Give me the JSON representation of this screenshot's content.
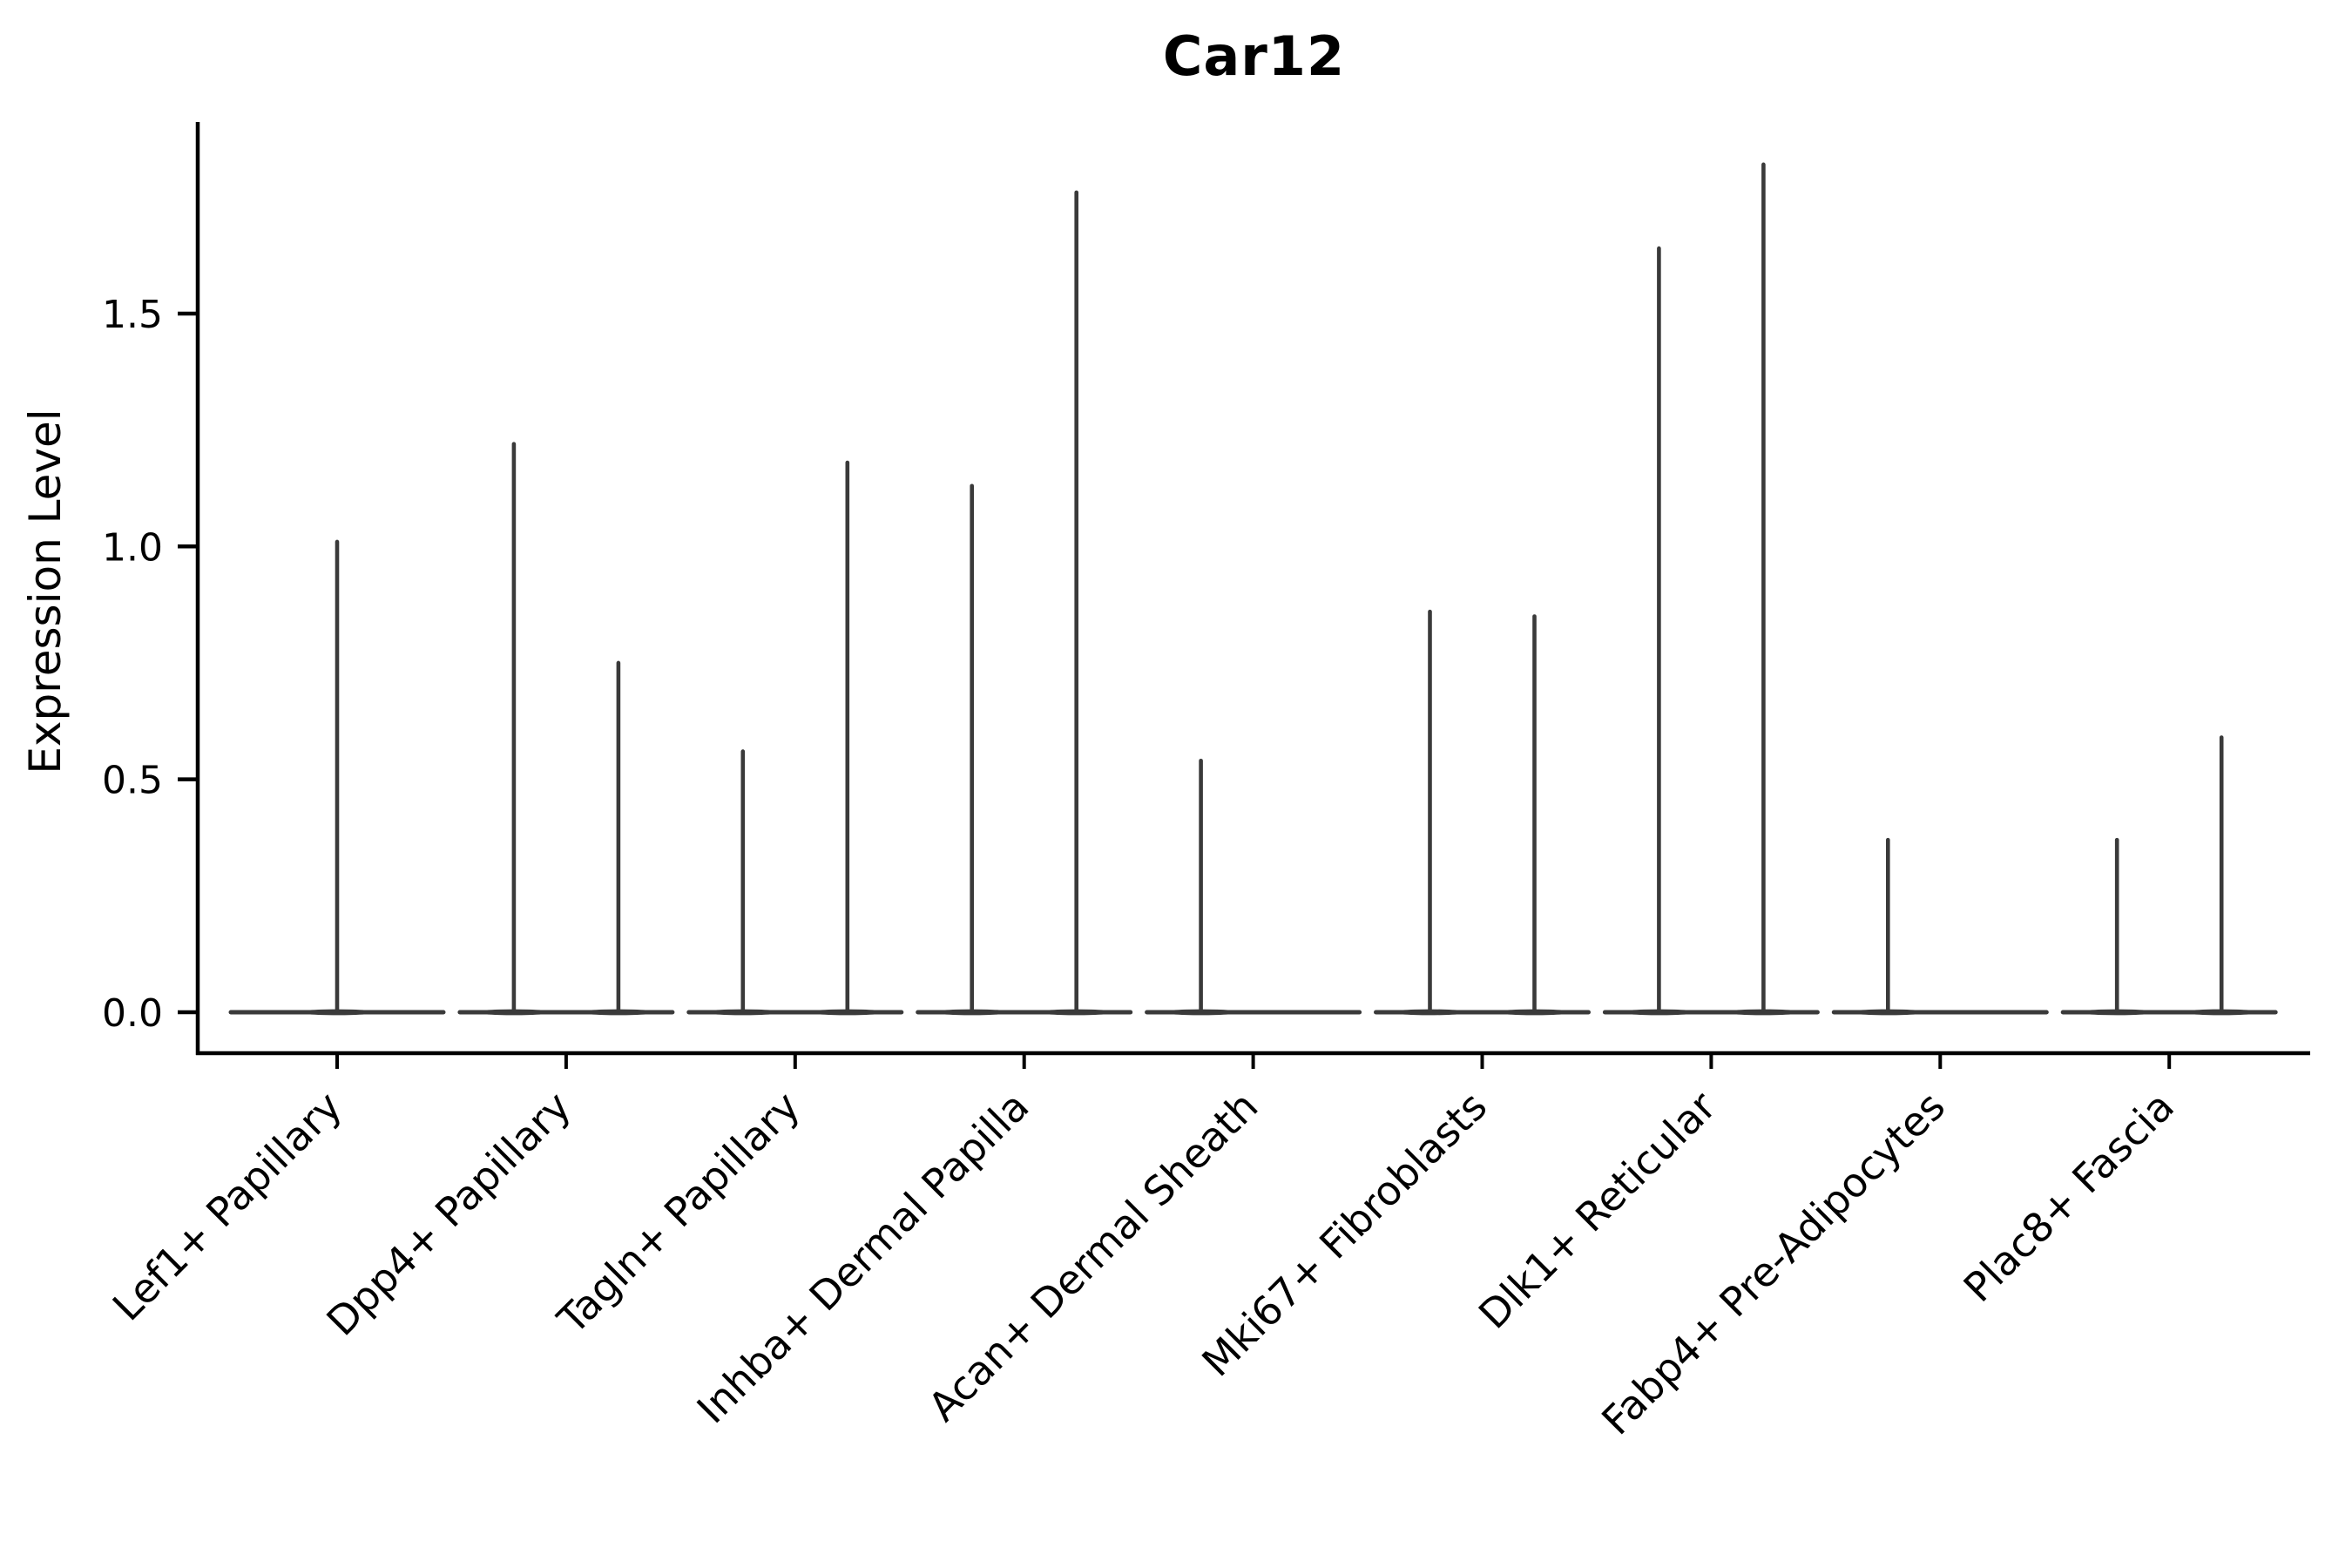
{
  "chart_data": {
    "type": "violin",
    "title": "Car12",
    "xlabel": "",
    "ylabel": "Expression Level",
    "yticks": {
      "values": [
        0.0,
        0.5,
        1.0,
        1.5
      ],
      "labels": [
        "0.0",
        "0.5",
        "1.0",
        "1.5"
      ]
    },
    "ylim": [
      -0.09,
      1.91
    ],
    "grid": false,
    "legend": null,
    "xtick_rotation": 45,
    "violin_color": "#3a3a3a",
    "axis_color": "#000000",
    "background_color": "#ffffff",
    "description": "Violin plot of Car12 expression; violins are near-zero width with thin spikes to the max expression value. Most categories contain two adjacent violins (left/right); peak 0 means a flat violin at expression 0.",
    "categories": [
      {
        "label": "Lef1+ Papillary",
        "violins": [
          {
            "pos": "center",
            "peak": 1.01
          }
        ]
      },
      {
        "label": "Dpp4+ Papillary",
        "violins": [
          {
            "pos": "left",
            "peak": 1.22
          },
          {
            "pos": "right",
            "peak": 0.75
          }
        ]
      },
      {
        "label": "Tagln+ Papillary",
        "violins": [
          {
            "pos": "left",
            "peak": 0.56
          },
          {
            "pos": "right",
            "peak": 1.18
          }
        ]
      },
      {
        "label": "Inhba+ Dermal Papilla",
        "violins": [
          {
            "pos": "left",
            "peak": 1.13
          },
          {
            "pos": "right",
            "peak": 1.76
          }
        ]
      },
      {
        "label": "Acan+ Dermal Sheath",
        "violins": [
          {
            "pos": "left",
            "peak": 0.54
          },
          {
            "pos": "right",
            "peak": 0
          }
        ]
      },
      {
        "label": "Mki67+ Fibroblasts",
        "violins": [
          {
            "pos": "left",
            "peak": 0.86
          },
          {
            "pos": "right",
            "peak": 0.85
          }
        ]
      },
      {
        "label": "Dlk1+ Reticular",
        "violins": [
          {
            "pos": "left",
            "peak": 1.64
          },
          {
            "pos": "right",
            "peak": 1.82
          }
        ]
      },
      {
        "label": "Fabp4+ Pre-Adipocytes",
        "violins": [
          {
            "pos": "left",
            "peak": 0.37
          },
          {
            "pos": "right",
            "peak": 0
          }
        ]
      },
      {
        "label": "Plac8+ Fascia",
        "violins": [
          {
            "pos": "left",
            "peak": 0.37
          },
          {
            "pos": "right",
            "peak": 0.59
          }
        ]
      }
    ]
  }
}
